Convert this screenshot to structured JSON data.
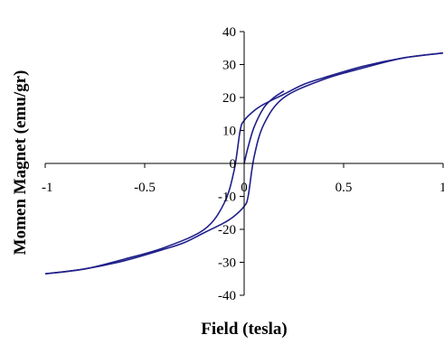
{
  "chart_data": {
    "type": "line",
    "xlabel": "Field (tesla)",
    "ylabel": "Momen Magnet (emu/gr)",
    "xlim": [
      -1,
      1
    ],
    "ylim": [
      -40,
      40
    ],
    "x_ticks": [
      -1,
      -0.5,
      0,
      0.5,
      1
    ],
    "x_tick_labels": [
      "-1",
      "-0.5",
      "0",
      "0.5",
      "1"
    ],
    "y_ticks": [
      -40,
      -30,
      -20,
      -10,
      0,
      10,
      20,
      30,
      40
    ],
    "y_tick_labels": [
      "-40",
      "-30",
      "-20",
      "-10",
      "0",
      "10",
      "20",
      "30",
      "40"
    ],
    "grid": false,
    "legend": "none",
    "line_color": "#1f1f8a",
    "series": [
      {
        "x": [
          1.0,
          0.8,
          0.6,
          0.4,
          0.3,
          0.2,
          0.1,
          0.05,
          0.0,
          -0.02,
          -0.05,
          -0.1,
          -0.2,
          -0.4,
          -0.6,
          -0.8,
          -1.0
        ],
        "y": [
          33.5,
          32.0,
          29.5,
          26.0,
          24.0,
          21.0,
          18.0,
          16.0,
          13.0,
          10.0,
          -2.0,
          -12.0,
          -20.0,
          -25.5,
          -29.0,
          -32.0,
          -33.5
        ]
      },
      {
        "x": [
          -1.0,
          -0.8,
          -0.6,
          -0.4,
          -0.3,
          -0.2,
          -0.1,
          -0.05,
          0.0,
          0.02,
          0.05,
          0.1,
          0.2,
          0.4,
          0.6,
          0.8,
          1.0
        ],
        "y": [
          -33.5,
          -32.0,
          -29.5,
          -26.0,
          -24.0,
          -21.0,
          -18.0,
          -16.0,
          -13.0,
          -10.0,
          2.0,
          12.0,
          20.0,
          25.5,
          29.0,
          32.0,
          33.5
        ]
      },
      {
        "x": [
          0.0,
          0.02,
          0.05,
          0.1,
          0.15,
          0.2
        ],
        "y": [
          0.0,
          5.0,
          11.0,
          17.0,
          20.0,
          22.0
        ]
      }
    ]
  }
}
